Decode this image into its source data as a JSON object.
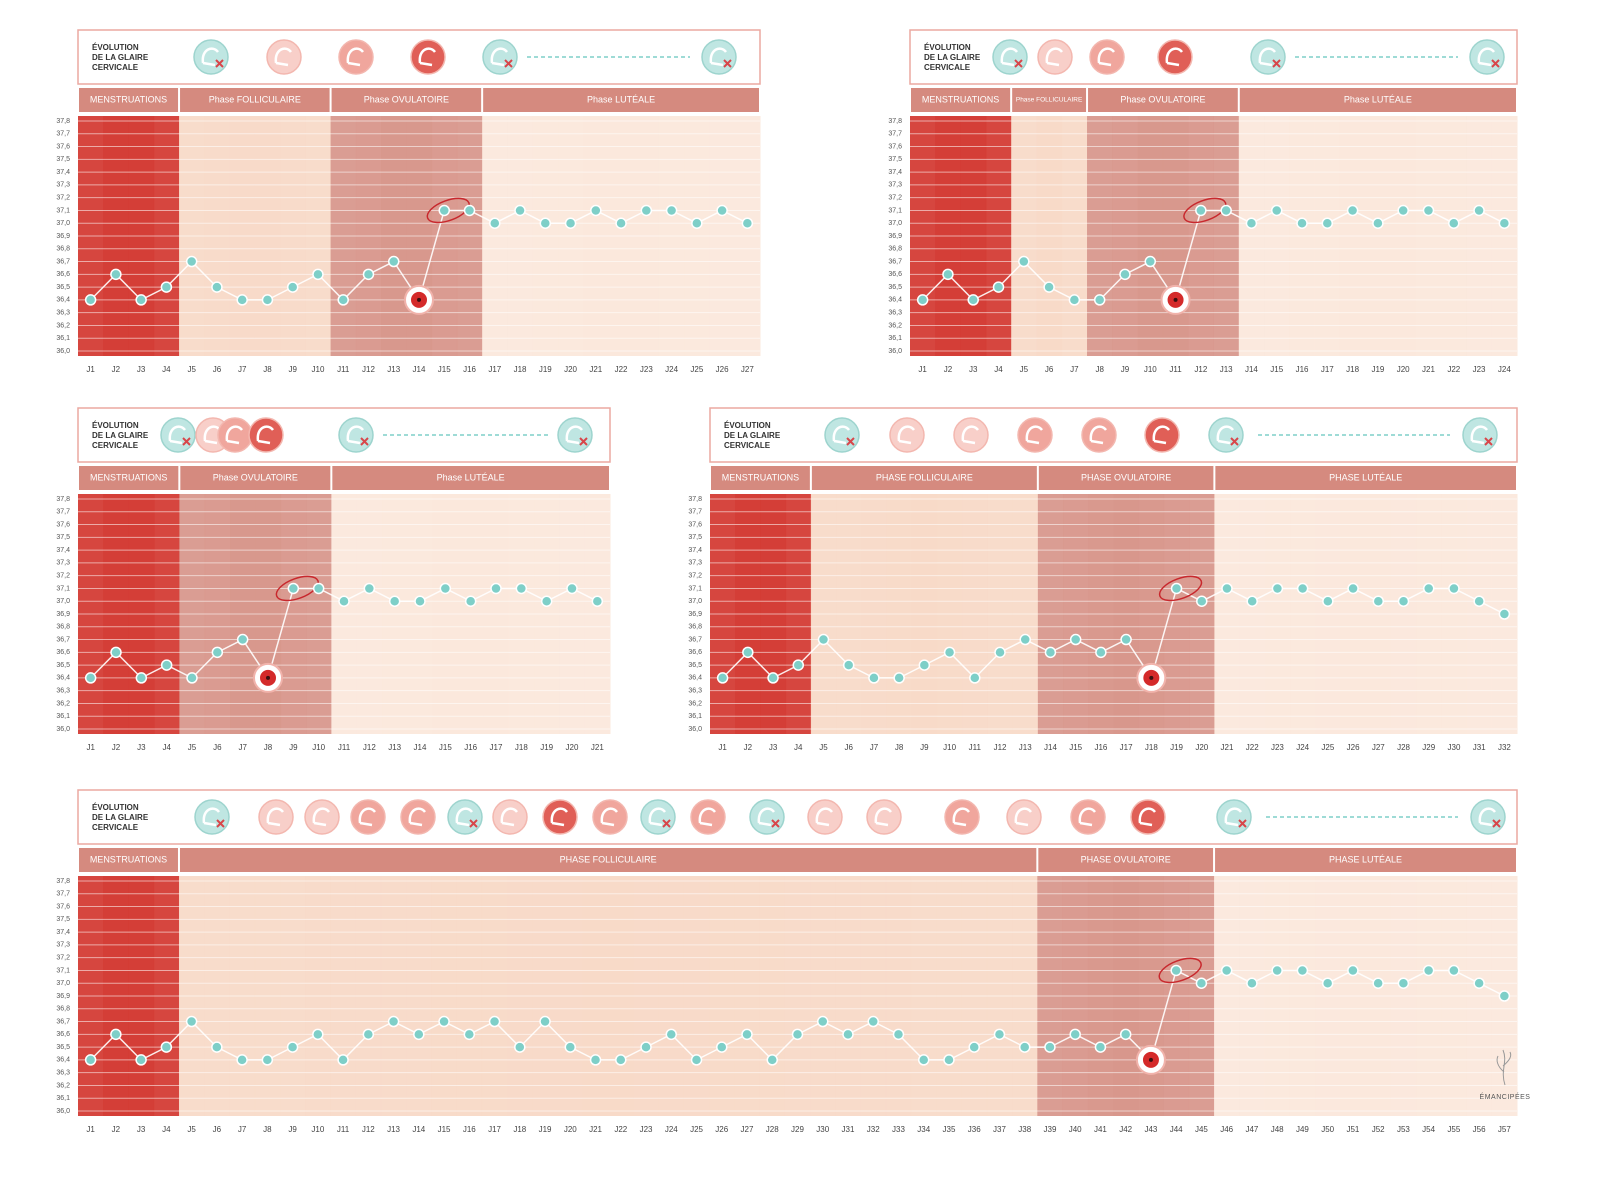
{
  "brand": "ÉMANCIPÉES",
  "chart_data": [
    {
      "type": "line",
      "header": [
        "ÉVOLUTION",
        "DE LA GLAIRE",
        "CERVICALE"
      ],
      "phases": [
        {
          "name": "MENSTRUATIONS",
          "start": "J1",
          "end": "J4",
          "color": "#d33a33"
        },
        {
          "name": "Phase FOLLICULAIRE",
          "start": "J5",
          "end": "J10",
          "color": "#f8dac8"
        },
        {
          "name": "Phase OVULATOIRE",
          "start": "J11",
          "end": "J16",
          "color": "#d8978c"
        },
        {
          "name": "Phase LUTÉALE",
          "start": "J17",
          "end": "J27",
          "color": "#fbe8dc"
        }
      ],
      "categories": [
        "J1",
        "J2",
        "J3",
        "J4",
        "J5",
        "J6",
        "J7",
        "J8",
        "J9",
        "J10",
        "J11",
        "J12",
        "J13",
        "J14",
        "J15",
        "J16",
        "J17",
        "J18",
        "J19",
        "J20",
        "J21",
        "J22",
        "J23",
        "J24",
        "J25",
        "J26",
        "J27"
      ],
      "values": [
        36.4,
        36.6,
        36.4,
        36.5,
        36.7,
        36.5,
        36.4,
        36.4,
        36.5,
        36.6,
        36.4,
        36.6,
        36.7,
        36.4,
        37.1,
        37.1,
        37.0,
        37.1,
        37.0,
        37.0,
        37.1,
        37.0,
        37.1,
        37.1,
        37.0,
        37.1,
        37.0
      ],
      "color": "#7ecfc8",
      "grid": true,
      "ylim": [
        36.0,
        37.8
      ],
      "yticks": [
        {
          "value": 36.0,
          "label": "36,0"
        },
        {
          "value": 36.1,
          "label": "36,1"
        },
        {
          "value": 36.2,
          "label": "36,2"
        },
        {
          "value": 36.3,
          "label": "36,3"
        },
        {
          "value": 36.4,
          "label": "36,4"
        },
        {
          "value": 36.5,
          "label": "36,5"
        },
        {
          "value": 36.6,
          "label": "36,6"
        },
        {
          "value": 36.7,
          "label": "36,7"
        },
        {
          "value": 36.8,
          "label": "36,8"
        },
        {
          "value": 36.9,
          "label": "36,9"
        },
        {
          "value": 37.0,
          "label": "37,0"
        },
        {
          "value": 37.1,
          "label": "37,1"
        },
        {
          "value": 37.2,
          "label": "37,2"
        },
        {
          "value": 37.3,
          "label": "37,3"
        },
        {
          "value": 37.4,
          "label": "37,4"
        },
        {
          "value": 37.5,
          "label": "37,5"
        },
        {
          "value": 37.6,
          "label": "37,6"
        },
        {
          "value": 37.7,
          "label": "37,7"
        },
        {
          "value": 37.8,
          "label": "37,8"
        }
      ]
    },
    {
      "type": "line",
      "header": [
        "ÉVOLUTION",
        "DE LA GLAIRE",
        "CERVICALE"
      ],
      "phases": [
        {
          "name": "MENSTRUATIONS",
          "start": "J1",
          "end": "J4",
          "color": "#d33a33"
        },
        {
          "name": "Phase FOLLICULAIRE",
          "start": "J5",
          "end": "J7",
          "color": "#f8dac8"
        },
        {
          "name": "Phase OVULATOIRE",
          "start": "J8",
          "end": "J13",
          "color": "#d8978c"
        },
        {
          "name": "Phase LUTÉALE",
          "start": "J14",
          "end": "J24",
          "color": "#fbe8dc"
        }
      ],
      "categories": [
        "J1",
        "J2",
        "J3",
        "J4",
        "J5",
        "J6",
        "J7",
        "J8",
        "J9",
        "J10",
        "J11",
        "J12",
        "J13",
        "J14",
        "J15",
        "J16",
        "J17",
        "J18",
        "J19",
        "J20",
        "J21",
        "J22",
        "J23",
        "J24"
      ],
      "values": [
        36.4,
        36.6,
        36.4,
        36.5,
        36.7,
        36.5,
        36.4,
        36.4,
        36.6,
        36.7,
        36.4,
        37.1,
        37.1,
        37.0,
        37.1,
        37.0,
        37.0,
        37.1,
        37.0,
        37.1,
        37.1,
        37.0,
        37.1,
        37.0
      ],
      "color": "#7ecfc8",
      "grid": true,
      "ylim": [
        36.0,
        37.8
      ],
      "yticks": [
        {
          "value": 36.0,
          "label": "36,0"
        },
        {
          "value": 36.1,
          "label": "36,1"
        },
        {
          "value": 36.2,
          "label": "36,2"
        },
        {
          "value": 36.3,
          "label": "36,3"
        },
        {
          "value": 36.4,
          "label": "36,4"
        },
        {
          "value": 36.5,
          "label": "36,5"
        },
        {
          "value": 36.6,
          "label": "36,6"
        },
        {
          "value": 36.7,
          "label": "36,7"
        },
        {
          "value": 36.8,
          "label": "36,8"
        },
        {
          "value": 36.9,
          "label": "36,9"
        },
        {
          "value": 37.0,
          "label": "37,0"
        },
        {
          "value": 37.1,
          "label": "37,1"
        },
        {
          "value": 37.2,
          "label": "37,2"
        },
        {
          "value": 37.3,
          "label": "37,3"
        },
        {
          "value": 37.4,
          "label": "37,4"
        },
        {
          "value": 37.5,
          "label": "37,5"
        },
        {
          "value": 37.6,
          "label": "37,6"
        },
        {
          "value": 37.7,
          "label": "37,7"
        },
        {
          "value": 37.8,
          "label": "37,8"
        }
      ]
    },
    {
      "type": "line",
      "header": [
        "ÉVOLUTION",
        "DE LA GLAIRE",
        "CERVICALE"
      ],
      "phases": [
        {
          "name": "MENSTRUATIONS",
          "start": "J1",
          "end": "J4",
          "color": "#d33a33"
        },
        {
          "name": "Phase OVULATOIRE",
          "start": "J5",
          "end": "J10",
          "color": "#d8978c"
        },
        {
          "name": "Phase LUTÉALE",
          "start": "J11",
          "end": "J21",
          "color": "#fbe8dc"
        }
      ],
      "categories": [
        "J1",
        "J2",
        "J3",
        "J4",
        "J5",
        "J6",
        "J7",
        "J8",
        "J9",
        "J10",
        "J11",
        "J12",
        "J13",
        "J14",
        "J15",
        "J16",
        "J17",
        "J18",
        "J19",
        "J20",
        "J21"
      ],
      "values": [
        36.4,
        36.6,
        36.4,
        36.5,
        36.4,
        36.6,
        36.7,
        36.4,
        37.1,
        37.1,
        37.0,
        37.1,
        37.0,
        37.0,
        37.1,
        37.0,
        37.1,
        37.1,
        37.0,
        37.1,
        37.0
      ],
      "color": "#7ecfc8",
      "grid": true,
      "ylim": [
        36.0,
        37.8
      ],
      "yticks": [
        {
          "value": 36.0,
          "label": "36,0"
        },
        {
          "value": 36.1,
          "label": "36,1"
        },
        {
          "value": 36.2,
          "label": "36,2"
        },
        {
          "value": 36.3,
          "label": "36,3"
        },
        {
          "value": 36.4,
          "label": "36,4"
        },
        {
          "value": 36.5,
          "label": "36,5"
        },
        {
          "value": 36.6,
          "label": "36,6"
        },
        {
          "value": 36.7,
          "label": "36,7"
        },
        {
          "value": 36.8,
          "label": "36,8"
        },
        {
          "value": 36.9,
          "label": "36,9"
        },
        {
          "value": 37.0,
          "label": "37,0"
        },
        {
          "value": 37.1,
          "label": "37,1"
        },
        {
          "value": 37.2,
          "label": "37,2"
        },
        {
          "value": 37.3,
          "label": "37,3"
        },
        {
          "value": 37.4,
          "label": "37,4"
        },
        {
          "value": 37.5,
          "label": "37,5"
        },
        {
          "value": 37.6,
          "label": "37,6"
        },
        {
          "value": 37.7,
          "label": "37,7"
        },
        {
          "value": 37.8,
          "label": "37,8"
        }
      ]
    },
    {
      "type": "line",
      "header": [
        "ÉVOLUTION",
        "DE LA GLAIRE",
        "CERVICALE"
      ],
      "phases": [
        {
          "name": "MENSTRUATIONS",
          "start": "J1",
          "end": "J4",
          "color": "#d33a33"
        },
        {
          "name": "PHASE FOLLICULAIRE",
          "start": "J5",
          "end": "J13",
          "color": "#f8dac8"
        },
        {
          "name": "PHASE OVULATOIRE",
          "start": "J14",
          "end": "J20",
          "color": "#d8978c"
        },
        {
          "name": "PHASE LUTÉALE",
          "start": "J21",
          "end": "J32",
          "color": "#fbe8dc"
        }
      ],
      "categories": [
        "J1",
        "J2",
        "J3",
        "J4",
        "J5",
        "J6",
        "J7",
        "J8",
        "J9",
        "J10",
        "J11",
        "J12",
        "J13",
        "J14",
        "J15",
        "J16",
        "J17",
        "J18",
        "J19",
        "J20",
        "J21",
        "J22",
        "J23",
        "J24",
        "J25",
        "J26",
        "J27",
        "J28",
        "J29",
        "J30",
        "J31",
        "J32"
      ],
      "values": [
        36.4,
        36.6,
        36.4,
        36.5,
        36.7,
        36.5,
        36.4,
        36.4,
        36.5,
        36.6,
        36.4,
        36.6,
        36.7,
        36.6,
        36.7,
        36.6,
        36.7,
        36.4,
        37.1,
        37.0,
        37.1,
        37.0,
        37.1,
        37.1,
        37.0,
        37.1,
        37.0,
        37.0,
        37.1,
        37.1,
        37.0,
        36.9
      ],
      "color": "#7ecfc8",
      "grid": true,
      "ylim": [
        36.0,
        37.8
      ],
      "yticks": [
        {
          "value": 36.0,
          "label": "36,0"
        },
        {
          "value": 36.1,
          "label": "36,1"
        },
        {
          "value": 36.2,
          "label": "36,2"
        },
        {
          "value": 36.3,
          "label": "36,3"
        },
        {
          "value": 36.4,
          "label": "36,4"
        },
        {
          "value": 36.5,
          "label": "36,5"
        },
        {
          "value": 36.6,
          "label": "36,6"
        },
        {
          "value": 36.7,
          "label": "36,7"
        },
        {
          "value": 36.8,
          "label": "36,8"
        },
        {
          "value": 36.9,
          "label": "36,9"
        },
        {
          "value": 37.0,
          "label": "37,0"
        },
        {
          "value": 37.1,
          "label": "37,1"
        },
        {
          "value": 37.2,
          "label": "37,2"
        },
        {
          "value": 37.3,
          "label": "37,3"
        },
        {
          "value": 37.4,
          "label": "37,4"
        },
        {
          "value": 37.5,
          "label": "37,5"
        },
        {
          "value": 37.6,
          "label": "37,6"
        },
        {
          "value": 37.7,
          "label": "37,7"
        },
        {
          "value": 37.8,
          "label": "37,8"
        }
      ]
    },
    {
      "type": "line",
      "header": [
        "ÉVOLUTION",
        "DE LA GLAIRE",
        "CERVICALE"
      ],
      "phases": [
        {
          "name": "MENSTRUATIONS",
          "start": "J1",
          "end": "J4",
          "color": "#d33a33"
        },
        {
          "name": "PHASE FOLLICULAIRE",
          "start": "J5",
          "end": "J38",
          "color": "#f8dac8"
        },
        {
          "name": "PHASE OVULATOIRE",
          "start": "J39",
          "end": "J45",
          "color": "#d8978c"
        },
        {
          "name": "PHASE LUTÉALE",
          "start": "J46",
          "end": "J57",
          "color": "#fbe8dc"
        }
      ],
      "categories": [
        "J1",
        "J2",
        "J3",
        "J4",
        "J5",
        "J6",
        "J7",
        "J8",
        "J9",
        "J10",
        "J11",
        "J12",
        "J13",
        "J14",
        "J15",
        "J16",
        "J17",
        "J18",
        "J19",
        "J20",
        "J21",
        "J22",
        "J23",
        "J24",
        "J25",
        "J26",
        "J27",
        "J28",
        "J29",
        "J30",
        "J31",
        "J32",
        "J33",
        "J34",
        "J35",
        "J36",
        "J37",
        "J38",
        "J39",
        "J40",
        "J41",
        "J42",
        "J43",
        "J44",
        "J45",
        "J46",
        "J47",
        "J48",
        "J49",
        "J50",
        "J51",
        "J52",
        "J53",
        "J54",
        "J55",
        "J56",
        "J57"
      ],
      "values": [
        36.4,
        36.6,
        36.4,
        36.5,
        36.7,
        36.5,
        36.4,
        36.4,
        36.5,
        36.6,
        36.4,
        36.6,
        36.7,
        36.6,
        36.7,
        36.6,
        36.7,
        36.5,
        36.7,
        36.5,
        36.4,
        36.4,
        36.5,
        36.6,
        36.4,
        36.5,
        36.6,
        36.4,
        36.6,
        36.7,
        36.6,
        36.7,
        36.6,
        36.4,
        36.4,
        36.5,
        36.6,
        36.5,
        36.5,
        36.6,
        36.5,
        36.6,
        36.4,
        37.1,
        37.0,
        37.1,
        37.0,
        37.1,
        37.1,
        37.0,
        37.1,
        37.0,
        37.0,
        37.1,
        37.1,
        37.0,
        36.9
      ],
      "color": "#7ecfc8",
      "grid": true,
      "ylim": [
        36.0,
        37.8
      ],
      "yticks": [
        {
          "value": 36.0,
          "label": "36,0"
        },
        {
          "value": 36.1,
          "label": "36,1"
        },
        {
          "value": 36.2,
          "label": "36,2"
        },
        {
          "value": 36.3,
          "label": "36,3"
        },
        {
          "value": 36.4,
          "label": "36,4"
        },
        {
          "value": 36.5,
          "label": "36,5"
        },
        {
          "value": 36.6,
          "label": "36,6"
        },
        {
          "value": 36.7,
          "label": "36,7"
        },
        {
          "value": 36.8,
          "label": "36,8"
        },
        {
          "value": 36.9,
          "label": "36,9"
        },
        {
          "value": 37.0,
          "label": "37,0"
        },
        {
          "value": 37.1,
          "label": "37,1"
        },
        {
          "value": 37.2,
          "label": "37,2"
        },
        {
          "value": 37.3,
          "label": "37,3"
        },
        {
          "value": 37.4,
          "label": "37,4"
        },
        {
          "value": 37.5,
          "label": "37,5"
        },
        {
          "value": 37.6,
          "label": "37,6"
        },
        {
          "value": 37.7,
          "label": "37,7"
        },
        {
          "value": 37.8,
          "label": "37,8"
        }
      ]
    }
  ]
}
